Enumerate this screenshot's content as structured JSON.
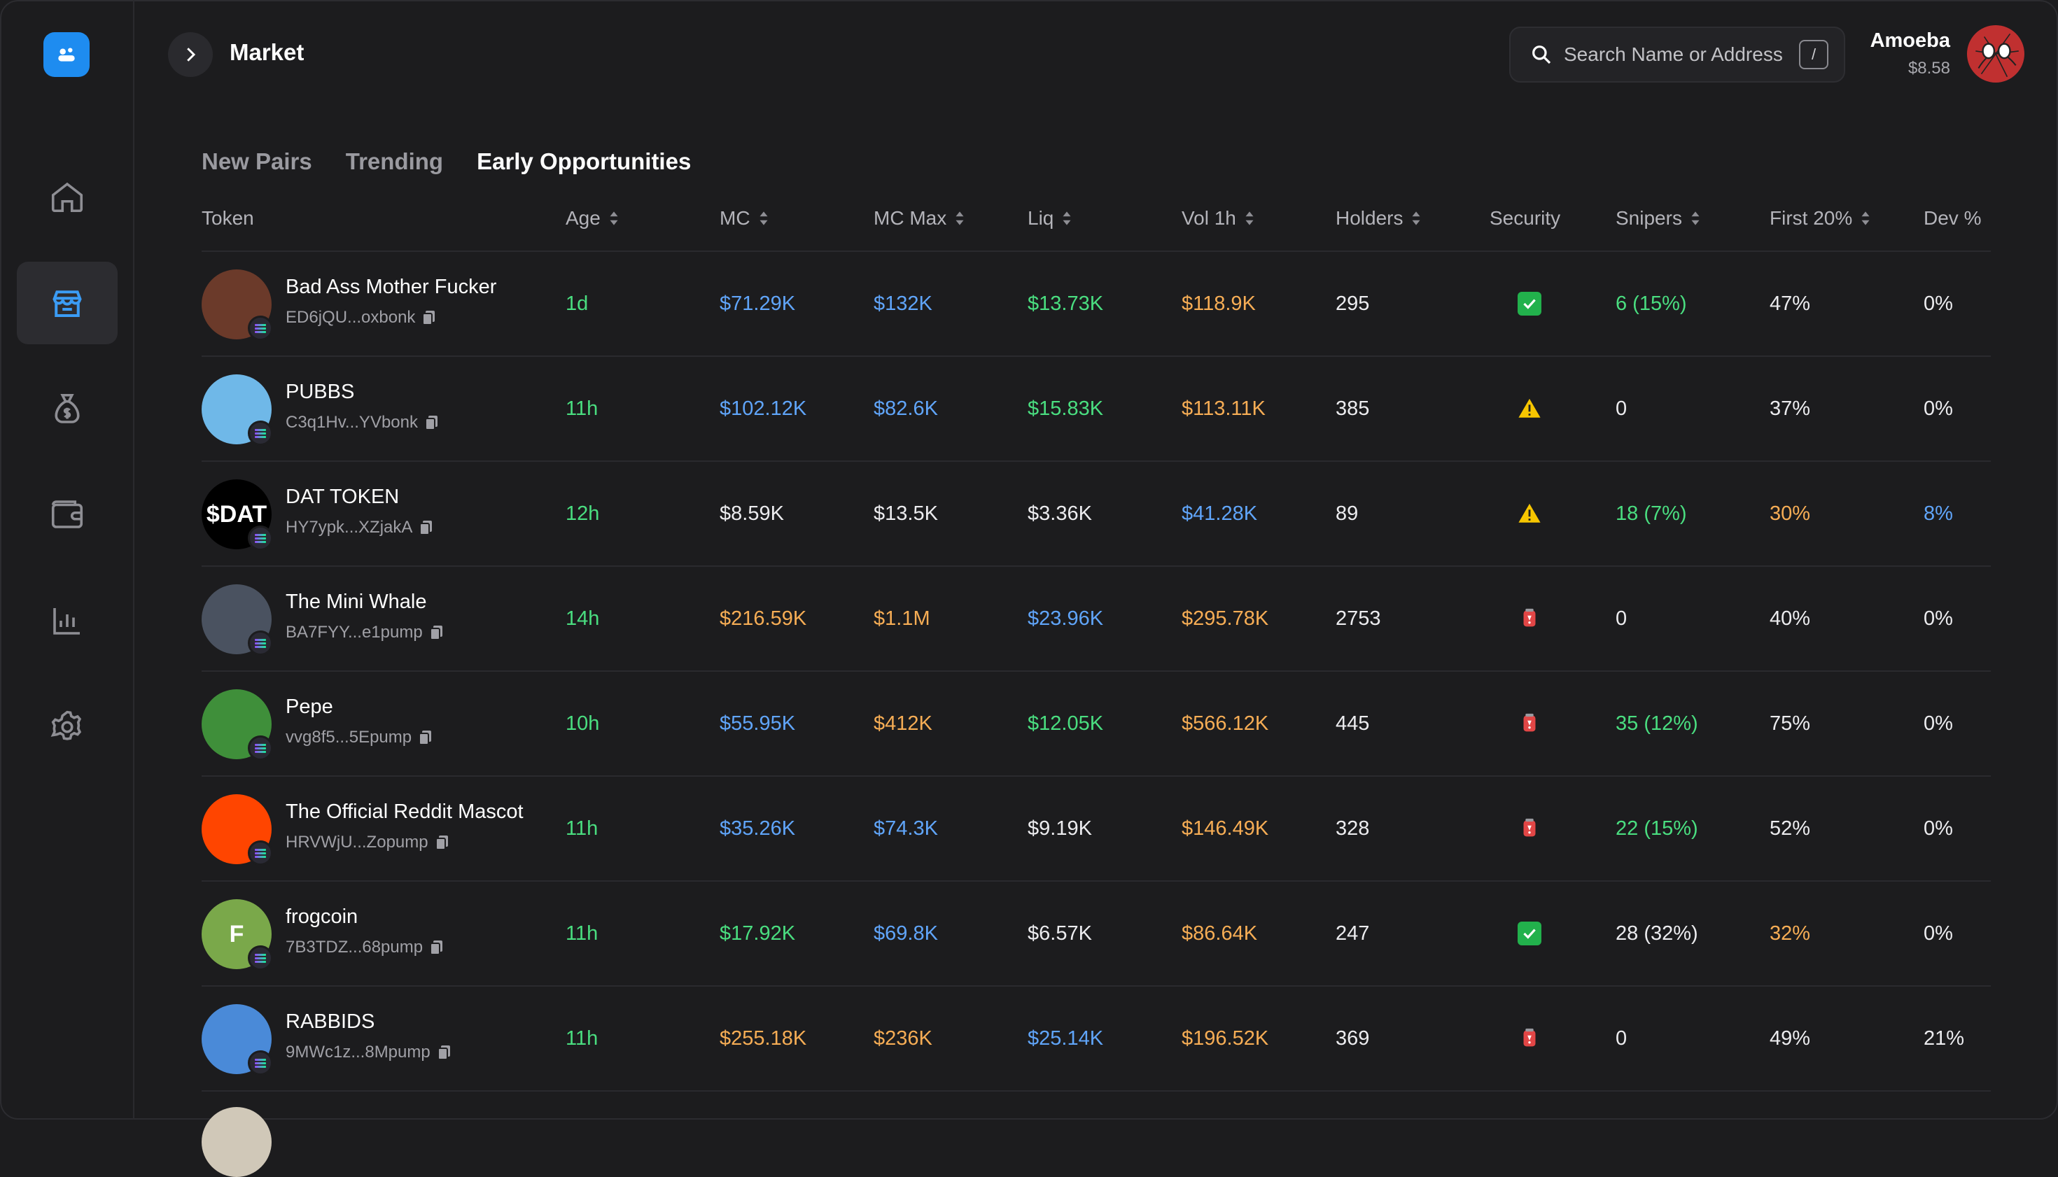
{
  "header": {
    "title": "Market",
    "search_placeholder": "Search Name or Address",
    "search_shortcut": "/",
    "user_name": "Amoeba",
    "user_balance": "$8.58"
  },
  "sidebar": {
    "items": [
      {
        "name": "home-icon",
        "active": false
      },
      {
        "name": "market-icon",
        "active": true
      },
      {
        "name": "money-bag-icon",
        "active": false
      },
      {
        "name": "wallet-icon",
        "active": false
      },
      {
        "name": "chart-icon",
        "active": false
      },
      {
        "name": "settings-icon",
        "active": false
      }
    ]
  },
  "tabs": [
    {
      "label": "New Pairs",
      "active": false
    },
    {
      "label": "Trending",
      "active": false
    },
    {
      "label": "Early Opportunities",
      "active": true
    }
  ],
  "columns": [
    "Token",
    "Age",
    "MC",
    "MC Max",
    "Liq",
    "Vol 1h",
    "Holders",
    "Security",
    "Snipers",
    "First 20%",
    "Dev %"
  ],
  "colors": {
    "green": "#4ade80",
    "blue": "#60a5fa",
    "orange": "#f6ad55",
    "white": "#ececef",
    "accent": "#1e8cf0"
  },
  "rows": [
    {
      "name": "Bad Ass Mother Fucker",
      "addr": "ED6jQU...oxbonk",
      "img": "#6b3a2a",
      "img_text": "",
      "age": "1d",
      "age_c": "green",
      "mc": "$71.29K",
      "mc_c": "blue",
      "mcmax": "$132K",
      "mcmax_c": "blue",
      "liq": "$13.73K",
      "liq_c": "green",
      "vol": "$118.9K",
      "vol_c": "orange",
      "holders": "295",
      "security": "ok",
      "snipers": "6 (15%)",
      "snipers_c": "green",
      "first": "47%",
      "first_c": "white",
      "dev": "0%",
      "dev_c": "white"
    },
    {
      "name": "PUBBS",
      "addr": "C3q1Hv...YVbonk",
      "img": "#6fb8e8",
      "img_text": "",
      "age": "11h",
      "age_c": "green",
      "mc": "$102.12K",
      "mc_c": "blue",
      "mcmax": "$82.6K",
      "mcmax_c": "blue",
      "liq": "$15.83K",
      "liq_c": "green",
      "vol": "$113.11K",
      "vol_c": "orange",
      "holders": "385",
      "security": "warn",
      "snipers": "0",
      "snipers_c": "white",
      "first": "37%",
      "first_c": "white",
      "dev": "0%",
      "dev_c": "white"
    },
    {
      "name": "DAT TOKEN",
      "addr": "HY7ypk...XZjakA",
      "img": "#000000",
      "img_text": "$DAT",
      "age": "12h",
      "age_c": "green",
      "mc": "$8.59K",
      "mc_c": "white",
      "mcmax": "$13.5K",
      "mcmax_c": "white",
      "liq": "$3.36K",
      "liq_c": "white",
      "vol": "$41.28K",
      "vol_c": "blue",
      "holders": "89",
      "security": "warn",
      "snipers": "18 (7%)",
      "snipers_c": "green",
      "first": "30%",
      "first_c": "orange",
      "dev": "8%",
      "dev_c": "blue"
    },
    {
      "name": "The Mini Whale",
      "addr": "BA7FYY...e1pump",
      "img": "#4a5260",
      "img_text": "",
      "age": "14h",
      "age_c": "green",
      "mc": "$216.59K",
      "mc_c": "orange",
      "mcmax": "$1.1M",
      "mcmax_c": "orange",
      "liq": "$23.96K",
      "liq_c": "blue",
      "vol": "$295.78K",
      "vol_c": "orange",
      "holders": "2753",
      "security": "alert",
      "snipers": "0",
      "snipers_c": "white",
      "first": "40%",
      "first_c": "white",
      "dev": "0%",
      "dev_c": "white"
    },
    {
      "name": "Pepe",
      "addr": "vvg8f5...5Epump",
      "img": "#3f8f3a",
      "img_text": "",
      "age": "10h",
      "age_c": "green",
      "mc": "$55.95K",
      "mc_c": "blue",
      "mcmax": "$412K",
      "mcmax_c": "orange",
      "liq": "$12.05K",
      "liq_c": "green",
      "vol": "$566.12K",
      "vol_c": "orange",
      "holders": "445",
      "security": "alert",
      "snipers": "35 (12%)",
      "snipers_c": "green",
      "first": "75%",
      "first_c": "white",
      "dev": "0%",
      "dev_c": "white"
    },
    {
      "name": "The Official Reddit Mascot",
      "addr": "HRVWjU...Zopump",
      "img": "#ff4500",
      "img_text": "",
      "age": "11h",
      "age_c": "green",
      "mc": "$35.26K",
      "mc_c": "blue",
      "mcmax": "$74.3K",
      "mcmax_c": "blue",
      "liq": "$9.19K",
      "liq_c": "white",
      "vol": "$146.49K",
      "vol_c": "orange",
      "holders": "328",
      "security": "alert",
      "snipers": "22 (15%)",
      "snipers_c": "green",
      "first": "52%",
      "first_c": "white",
      "dev": "0%",
      "dev_c": "white"
    },
    {
      "name": "frogcoin",
      "addr": "7B3TDZ...68pump",
      "img": "#7aa84a",
      "img_text": "F",
      "age": "11h",
      "age_c": "green",
      "mc": "$17.92K",
      "mc_c": "green",
      "mcmax": "$69.8K",
      "mcmax_c": "blue",
      "liq": "$6.57K",
      "liq_c": "white",
      "vol": "$86.64K",
      "vol_c": "orange",
      "holders": "247",
      "security": "ok",
      "snipers": "28 (32%)",
      "snipers_c": "white",
      "first": "32%",
      "first_c": "orange",
      "dev": "0%",
      "dev_c": "white"
    },
    {
      "name": "RABBIDS",
      "addr": "9MWc1z...8Mpump",
      "img": "#4a8ad8",
      "img_text": "",
      "age": "11h",
      "age_c": "green",
      "mc": "$255.18K",
      "mc_c": "orange",
      "mcmax": "$236K",
      "mcmax_c": "orange",
      "liq": "$25.14K",
      "liq_c": "blue",
      "vol": "$196.52K",
      "vol_c": "orange",
      "holders": "369",
      "security": "alert",
      "snipers": "0",
      "snipers_c": "white",
      "first": "49%",
      "first_c": "white",
      "dev": "21%",
      "dev_c": "white"
    }
  ]
}
